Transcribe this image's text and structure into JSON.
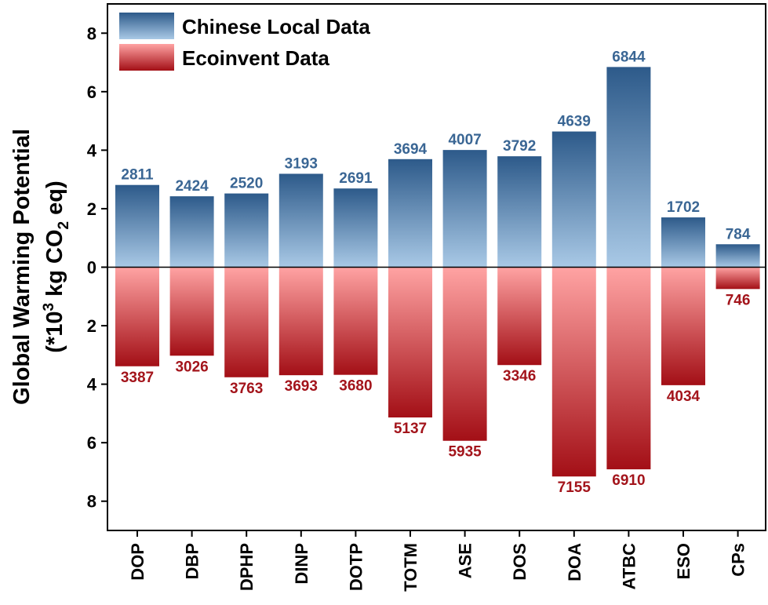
{
  "chart_data": {
    "type": "bar",
    "ylabel_line1": "Global Warming Potential",
    "ylabel_line2_pre": "(*10",
    "ylabel_line2_sup": "3",
    "ylabel_line2_mid": " kg CO",
    "ylabel_line2_sub": "2",
    "ylabel_line2_post": " eq)",
    "ylim": [
      -9,
      9
    ],
    "y_ticks": [
      8,
      6,
      4,
      2,
      0,
      -2,
      -4,
      -6,
      -8
    ],
    "y_tick_labels": [
      "8",
      "6",
      "4",
      "2",
      "0",
      "2",
      "4",
      "6",
      "8"
    ],
    "legend_position": "top-left",
    "categories": [
      "DOP",
      "DBP",
      "DPHP",
      "DINP",
      "DOTP",
      "TOTM",
      "ASE",
      "DOS",
      "DOA",
      "ATBC",
      "ESO",
      "CPs"
    ],
    "series": [
      {
        "name": "Chinese Local Data",
        "direction": "up",
        "values": [
          2811,
          2424,
          2520,
          3193,
          2691,
          3694,
          4007,
          3792,
          4639,
          6844,
          1702,
          784
        ],
        "labels": [
          "2811",
          "2424",
          "2520",
          "3193",
          "2691",
          "3694",
          "4007",
          "3792",
          "4639",
          "6844",
          "1702",
          "784"
        ],
        "color_dark": "#2d5a8a",
        "color_light": "#a9c9e6",
        "label_color": "#3a6694"
      },
      {
        "name": "Ecoinvent Data",
        "direction": "down",
        "values": [
          3387,
          3026,
          3763,
          3693,
          3680,
          5137,
          5935,
          3346,
          7155,
          6910,
          4034,
          746
        ],
        "labels": [
          "3387",
          "3026",
          "3763",
          "3693",
          "3680",
          "5137",
          "5935",
          "3346",
          "7155",
          "6910",
          "4034",
          "746"
        ],
        "color_dark": "#a30f16",
        "color_light": "#ffa3a3",
        "label_color": "#a3141b"
      }
    ]
  }
}
